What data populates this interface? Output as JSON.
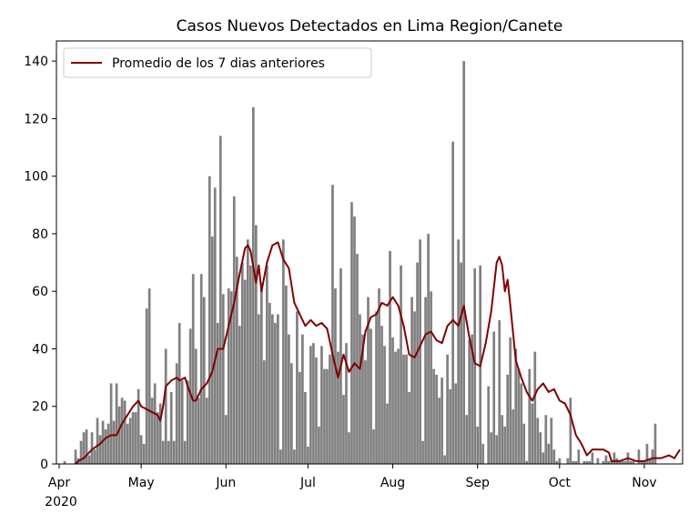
{
  "chart_data": {
    "type": "bar",
    "title": "Casos Nuevos Detectados en Lima Region/Canete",
    "xlabel": "",
    "ylabel": "",
    "x_start": "2020-03-31",
    "x_end": "2020-11-15",
    "ylim": [
      0,
      147
    ],
    "grid": false,
    "legend_position": "top-left",
    "colors": {
      "bars": "#808080",
      "line": "#800000"
    },
    "x_ticks": [
      {
        "date": "2020-04-01",
        "label": "Apr"
      },
      {
        "date": "2020-05-01",
        "label": "May"
      },
      {
        "date": "2020-06-01",
        "label": "Jun"
      },
      {
        "date": "2020-07-01",
        "label": "Jul"
      },
      {
        "date": "2020-08-01",
        "label": "Aug"
      },
      {
        "date": "2020-09-01",
        "label": "Sep"
      },
      {
        "date": "2020-10-01",
        "label": "Oct"
      },
      {
        "date": "2020-11-01",
        "label": "Nov"
      }
    ],
    "x_year_label": "2020",
    "y_ticks": [
      0,
      20,
      40,
      60,
      80,
      100,
      120,
      140
    ],
    "bar_start_date": "2020-04-01",
    "values": [
      0,
      0,
      1,
      0,
      0,
      0,
      5,
      2,
      8,
      11,
      12,
      3,
      11,
      5,
      16,
      10,
      15,
      12,
      14,
      28,
      15,
      28,
      20,
      23,
      22,
      14,
      16,
      18,
      18,
      26,
      10,
      7,
      54,
      61,
      23,
      28,
      18,
      21,
      8,
      40,
      8,
      25,
      8,
      35,
      49,
      29,
      8,
      29,
      47,
      66,
      40,
      23,
      66,
      58,
      23,
      100,
      79,
      96,
      49,
      114,
      59,
      17,
      61,
      60,
      93,
      72,
      48,
      70,
      64,
      78,
      69,
      124,
      83,
      52,
      63,
      36,
      69,
      56,
      52,
      49,
      52,
      5,
      78,
      62,
      45,
      35,
      5,
      53,
      32,
      45,
      25,
      6,
      41,
      42,
      37,
      13,
      41,
      33,
      33,
      38,
      97,
      61,
      39,
      68,
      24,
      42,
      11,
      91,
      86,
      73,
      52,
      45,
      36,
      58,
      47,
      12,
      53,
      61,
      48,
      41,
      21,
      74,
      44,
      39,
      40,
      69,
      38,
      38,
      25,
      58,
      53,
      70,
      78,
      8,
      58,
      80,
      60,
      33,
      31,
      23,
      30,
      3,
      38,
      26,
      112,
      28,
      78,
      70,
      140,
      17,
      43,
      45,
      68,
      13,
      69,
      7,
      0,
      27,
      11,
      46,
      10,
      50,
      17,
      13,
      31,
      44,
      19,
      40,
      33,
      28,
      14,
      1,
      33,
      21,
      39,
      16,
      11,
      4,
      17,
      7,
      16,
      5,
      1,
      2,
      0,
      0,
      2,
      23,
      1,
      1,
      5,
      0,
      1,
      1,
      1,
      4,
      0,
      2,
      0,
      1,
      3,
      1,
      1,
      4,
      2,
      1,
      1,
      1,
      4,
      1,
      1,
      0,
      5,
      1,
      1,
      7,
      2,
      5,
      14
    ],
    "series": [
      {
        "name": "Promedio de los 7 dias anteriores",
        "points": [
          [
            "2020-04-07",
            0
          ],
          [
            "2020-04-08",
            1
          ],
          [
            "2020-04-10",
            2
          ],
          [
            "2020-04-13",
            5
          ],
          [
            "2020-04-16",
            7
          ],
          [
            "2020-04-18",
            9
          ],
          [
            "2020-04-20",
            10
          ],
          [
            "2020-04-22",
            10
          ],
          [
            "2020-04-24",
            14
          ],
          [
            "2020-04-26",
            17
          ],
          [
            "2020-04-28",
            20
          ],
          [
            "2020-04-30",
            22
          ],
          [
            "2020-05-01",
            20
          ],
          [
            "2020-05-03",
            19
          ],
          [
            "2020-05-05",
            18
          ],
          [
            "2020-05-07",
            17
          ],
          [
            "2020-05-08",
            15
          ],
          [
            "2020-05-09",
            20
          ],
          [
            "2020-05-10",
            27
          ],
          [
            "2020-05-12",
            29
          ],
          [
            "2020-05-14",
            30
          ],
          [
            "2020-05-15",
            29
          ],
          [
            "2020-05-17",
            30
          ],
          [
            "2020-05-18",
            27
          ],
          [
            "2020-05-20",
            22
          ],
          [
            "2020-05-21",
            22
          ],
          [
            "2020-05-23",
            26
          ],
          [
            "2020-05-25",
            28
          ],
          [
            "2020-05-27",
            32
          ],
          [
            "2020-05-29",
            40
          ],
          [
            "2020-05-31",
            40
          ],
          [
            "2020-06-02",
            48
          ],
          [
            "2020-06-04",
            56
          ],
          [
            "2020-06-06",
            66
          ],
          [
            "2020-06-08",
            75
          ],
          [
            "2020-06-09",
            76
          ],
          [
            "2020-06-10",
            74
          ],
          [
            "2020-06-12",
            63
          ],
          [
            "2020-06-13",
            69
          ],
          [
            "2020-06-14",
            60
          ],
          [
            "2020-06-16",
            70
          ],
          [
            "2020-06-18",
            76
          ],
          [
            "2020-06-20",
            77
          ],
          [
            "2020-06-22",
            71
          ],
          [
            "2020-06-24",
            68
          ],
          [
            "2020-06-26",
            56
          ],
          [
            "2020-06-28",
            52
          ],
          [
            "2020-06-30",
            48
          ],
          [
            "2020-07-02",
            50
          ],
          [
            "2020-07-04",
            48
          ],
          [
            "2020-07-06",
            49
          ],
          [
            "2020-07-08",
            47
          ],
          [
            "2020-07-10",
            38
          ],
          [
            "2020-07-12",
            30
          ],
          [
            "2020-07-14",
            38
          ],
          [
            "2020-07-16",
            32
          ],
          [
            "2020-07-18",
            35
          ],
          [
            "2020-07-20",
            33
          ],
          [
            "2020-07-22",
            46
          ],
          [
            "2020-07-24",
            51
          ],
          [
            "2020-07-26",
            52
          ],
          [
            "2020-07-28",
            56
          ],
          [
            "2020-07-30",
            55
          ],
          [
            "2020-08-01",
            58
          ],
          [
            "2020-08-03",
            55
          ],
          [
            "2020-08-05",
            48
          ],
          [
            "2020-08-07",
            38
          ],
          [
            "2020-08-09",
            37
          ],
          [
            "2020-08-11",
            41
          ],
          [
            "2020-08-13",
            45
          ],
          [
            "2020-08-15",
            46
          ],
          [
            "2020-08-17",
            43
          ],
          [
            "2020-08-19",
            42
          ],
          [
            "2020-08-21",
            48
          ],
          [
            "2020-08-23",
            50
          ],
          [
            "2020-08-25",
            48
          ],
          [
            "2020-08-27",
            55
          ],
          [
            "2020-08-29",
            44
          ],
          [
            "2020-08-31",
            35
          ],
          [
            "2020-09-02",
            34
          ],
          [
            "2020-09-04",
            42
          ],
          [
            "2020-09-06",
            53
          ],
          [
            "2020-09-08",
            70
          ],
          [
            "2020-09-09",
            72
          ],
          [
            "2020-09-10",
            69
          ],
          [
            "2020-09-11",
            60
          ],
          [
            "2020-09-12",
            64
          ],
          [
            "2020-09-13",
            55
          ],
          [
            "2020-09-15",
            36
          ],
          [
            "2020-09-17",
            30
          ],
          [
            "2020-09-19",
            25
          ],
          [
            "2020-09-21",
            22
          ],
          [
            "2020-09-23",
            26
          ],
          [
            "2020-09-25",
            28
          ],
          [
            "2020-09-27",
            25
          ],
          [
            "2020-09-29",
            26
          ],
          [
            "2020-10-01",
            22
          ],
          [
            "2020-10-03",
            21
          ],
          [
            "2020-10-05",
            17
          ],
          [
            "2020-10-07",
            10
          ],
          [
            "2020-10-09",
            7
          ],
          [
            "2020-10-11",
            3
          ],
          [
            "2020-10-12",
            4
          ],
          [
            "2020-10-13",
            5
          ],
          [
            "2020-10-15",
            5
          ],
          [
            "2020-10-17",
            5
          ],
          [
            "2020-10-19",
            4
          ],
          [
            "2020-10-20",
            1
          ],
          [
            "2020-10-23",
            1
          ],
          [
            "2020-10-26",
            2
          ],
          [
            "2020-10-29",
            1
          ],
          [
            "2020-11-01",
            1
          ],
          [
            "2020-11-04",
            2
          ],
          [
            "2020-11-07",
            2
          ],
          [
            "2020-11-10",
            3
          ],
          [
            "2020-11-12",
            2
          ],
          [
            "2020-11-14",
            5
          ]
        ]
      }
    ]
  }
}
